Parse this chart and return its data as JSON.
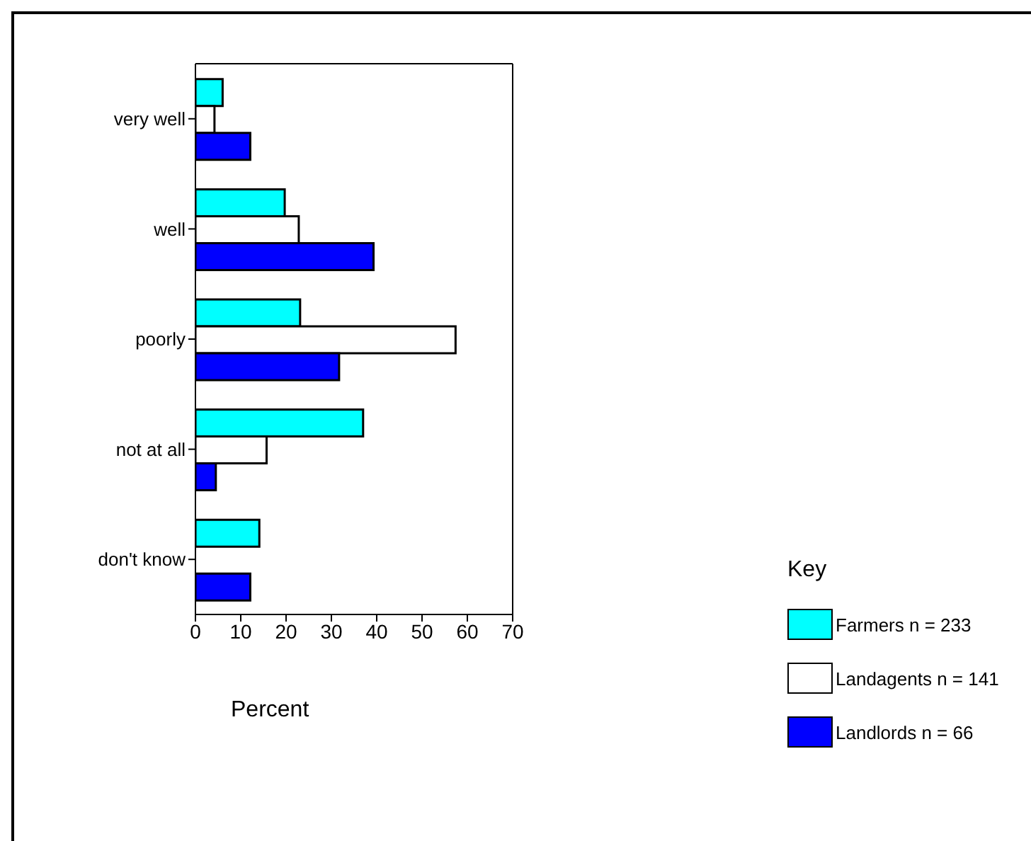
{
  "chart_data": {
    "type": "bar",
    "orientation": "horizontal",
    "xlabel": "Percent",
    "legend_title": "Key",
    "legend": "right",
    "categories": [
      "very well",
      "well",
      "poorly",
      "not at all",
      "don't know"
    ],
    "series": [
      {
        "name": "Farmers n = 233",
        "color": "#00ffff",
        "values": [
          6.0,
          19.7,
          23.1,
          37.0,
          14.1
        ]
      },
      {
        "name": "Landagents n = 141",
        "color": "#ffffff",
        "values": [
          4.2,
          22.8,
          57.4,
          15.7,
          null
        ]
      },
      {
        "name": "Landlords n = 66",
        "color": "#0000ff",
        "values": [
          12.1,
          39.3,
          31.7,
          4.5,
          12.1
        ]
      }
    ],
    "xlim": [
      0,
      70
    ],
    "xticks": [
      0,
      10,
      20,
      30,
      40,
      50,
      60,
      70
    ]
  }
}
